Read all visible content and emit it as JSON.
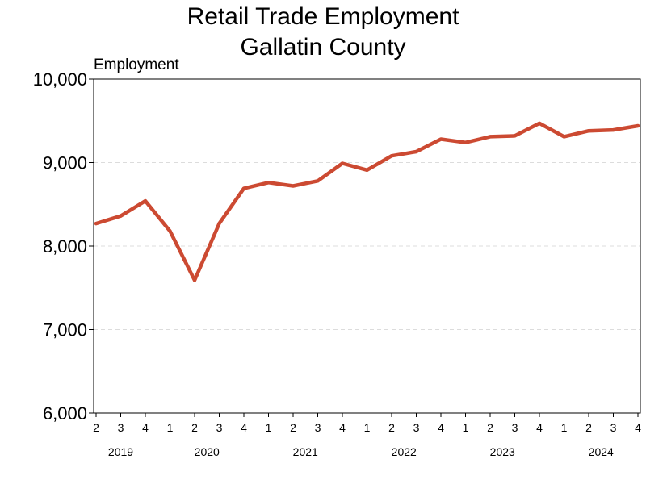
{
  "chart_data": {
    "type": "line",
    "title": [
      "Retail Trade Employment",
      "Gallatin County"
    ],
    "ylabel": "Employment",
    "ylim": [
      6000,
      10000
    ],
    "yticks": [
      6000,
      7000,
      8000,
      9000,
      10000
    ],
    "ytick_labels": [
      "6,000",
      "7,000",
      "8,000",
      "9,000",
      "10,000"
    ],
    "grid": "horizontal-dashed",
    "line_color": "#cc4a32",
    "x": [
      "2019Q2",
      "2019Q3",
      "2019Q4",
      "2020Q1",
      "2020Q2",
      "2020Q3",
      "2020Q4",
      "2021Q1",
      "2021Q2",
      "2021Q3",
      "2021Q4",
      "2022Q1",
      "2022Q2",
      "2022Q3",
      "2022Q4",
      "2023Q1",
      "2023Q2",
      "2023Q3",
      "2023Q4",
      "2024Q1",
      "2024Q2",
      "2024Q3",
      "2024Q4"
    ],
    "quarter_labels": [
      "2",
      "3",
      "4",
      "1",
      "2",
      "3",
      "4",
      "1",
      "2",
      "3",
      "4",
      "1",
      "2",
      "3",
      "4",
      "1",
      "2",
      "3",
      "4",
      "1",
      "2",
      "3",
      "4"
    ],
    "years": [
      {
        "label": "2019",
        "from": 0,
        "to": 2
      },
      {
        "label": "2020",
        "from": 3,
        "to": 6
      },
      {
        "label": "2021",
        "from": 7,
        "to": 10
      },
      {
        "label": "2022",
        "from": 11,
        "to": 14
      },
      {
        "label": "2023",
        "from": 15,
        "to": 18
      },
      {
        "label": "2024",
        "from": 19,
        "to": 22
      }
    ],
    "series": [
      {
        "values": [
          8270,
          8360,
          8540,
          8180,
          7590,
          8270,
          8690,
          8760,
          8720,
          8780,
          8990,
          8910,
          9080,
          9130,
          9280,
          9240,
          9310,
          9320,
          9470,
          9310,
          9380,
          9390,
          9440
        ]
      }
    ]
  }
}
